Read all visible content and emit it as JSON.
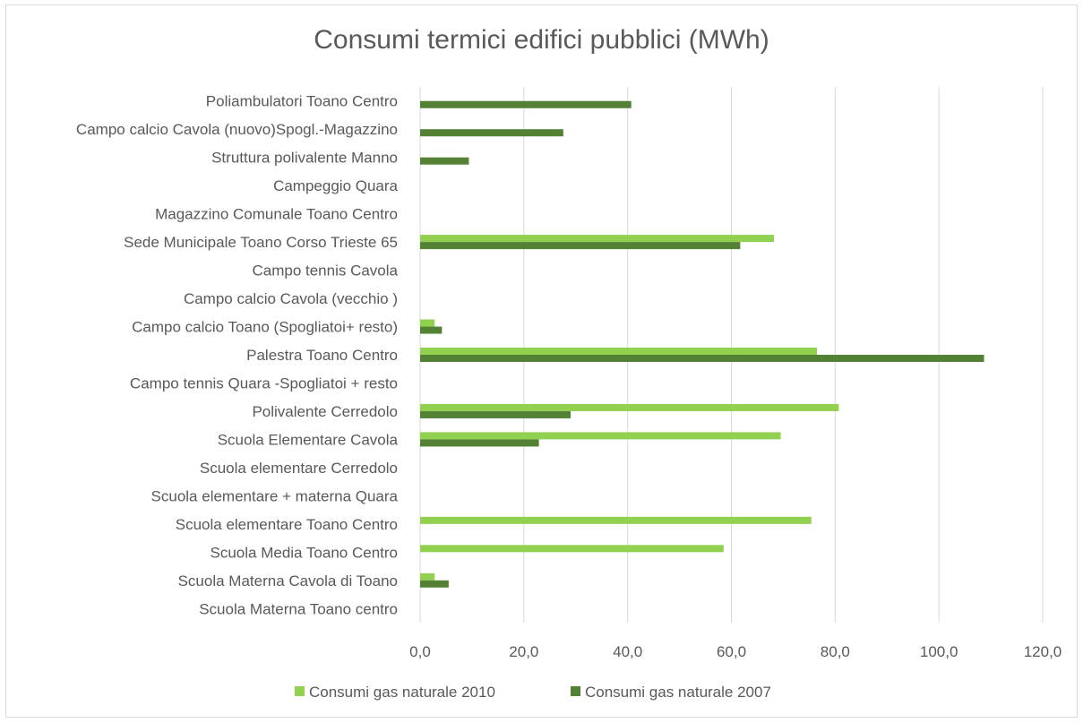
{
  "chart_data": {
    "type": "bar",
    "orientation": "horizontal",
    "title": "Consumi termici edifici pubblici (MWh)",
    "xlabel": "",
    "ylabel": "",
    "xlim": [
      0,
      120
    ],
    "x_ticks": [
      "0,0",
      "20,0",
      "40,0",
      "60,0",
      "80,0",
      "100,0",
      "120,0"
    ],
    "x_tick_values": [
      0,
      20,
      40,
      60,
      80,
      100,
      120
    ],
    "grid": true,
    "legend_position": "bottom",
    "categories": [
      "Poliambulatori Toano Centro",
      "Campo calcio Cavola (nuovo)Spogl.-Magazzino",
      "Struttura polivalente Manno",
      "Campeggio Quara",
      "Magazzino Comunale Toano Centro",
      "Sede Municipale Toano Corso Trieste 65",
      "Campo tennis Cavola",
      "Campo calcio Cavola (vecchio )",
      "Campo calcio Toano (Spogliatoi+ resto)",
      "Palestra Toano Centro",
      "Campo tennis Quara -Spogliatoi + resto",
      "Polivalente Cerredolo",
      "Scuola Elementare Cavola",
      "Scuola elementare Cerredolo",
      "Scuola elementare + materna Quara",
      "Scuola elementare Toano Centro",
      "Scuola Media Toano Centro",
      "Scuola Materna Cavola di Toano",
      "Scuola Materna Toano centro"
    ],
    "series": [
      {
        "name": "Consumi gas naturale 2010",
        "color": "#92d050",
        "values": [
          null,
          null,
          null,
          null,
          null,
          68.2,
          null,
          null,
          2.8,
          76.5,
          null,
          80.7,
          69.5,
          null,
          null,
          75.4,
          58.5,
          2.8,
          null
        ]
      },
      {
        "name": "Consumi gas naturale 2007",
        "color": "#548235",
        "values": [
          40.7,
          27.6,
          9.4,
          null,
          null,
          61.7,
          null,
          null,
          4.2,
          108.7,
          null,
          29.0,
          22.9,
          null,
          null,
          null,
          null,
          5.5,
          null
        ]
      }
    ]
  }
}
